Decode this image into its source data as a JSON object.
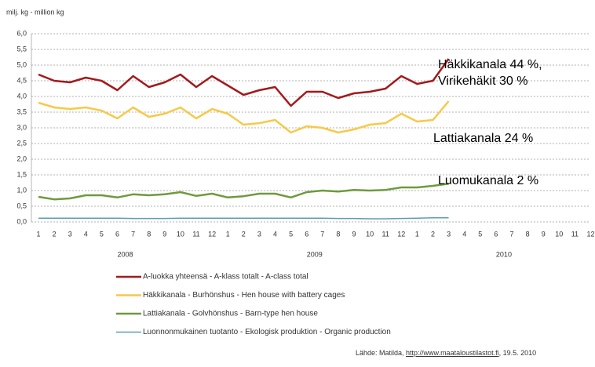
{
  "chart_data": {
    "type": "line",
    "y_unit_label": "milj. kg - million kg",
    "categories": [
      "1",
      "2",
      "3",
      "4",
      "5",
      "6",
      "7",
      "8",
      "9",
      "10",
      "11",
      "12",
      "1",
      "2",
      "3",
      "4",
      "5",
      "6",
      "7",
      "8",
      "9",
      "10",
      "11",
      "12",
      "1",
      "2",
      "3",
      "4",
      "5",
      "6",
      "7",
      "8",
      "9",
      "10",
      "11",
      "12"
    ],
    "x_groups": [
      "2008",
      "2009",
      "2010"
    ],
    "ylim": [
      0,
      6
    ],
    "yticks": [
      {
        "value": 0,
        "label": "0,0"
      },
      {
        "value": 0.5,
        "label": "0,5"
      },
      {
        "value": 1,
        "label": "1,0"
      },
      {
        "value": 1.5,
        "label": "1,5"
      },
      {
        "value": 2,
        "label": "2,0"
      },
      {
        "value": 2.5,
        "label": "2,5"
      },
      {
        "value": 3,
        "label": "3,0"
      },
      {
        "value": 3.5,
        "label": "3,5"
      },
      {
        "value": 4,
        "label": "4,0"
      },
      {
        "value": 4.5,
        "label": "4,5"
      },
      {
        "value": 5,
        "label": "5,0"
      },
      {
        "value": 5.5,
        "label": "5,5"
      },
      {
        "value": 6,
        "label": "6,0"
      }
    ],
    "grid": true,
    "series": [
      {
        "name": "A-luokka yhteensä - A-klass totalt - A-class total",
        "color": "#a3191c",
        "values": [
          4.7,
          4.5,
          4.45,
          4.6,
          4.5,
          4.2,
          4.65,
          4.3,
          4.45,
          4.7,
          4.3,
          4.65,
          4.35,
          4.05,
          4.2,
          4.3,
          3.7,
          4.15,
          4.15,
          3.95,
          4.1,
          4.15,
          4.25,
          4.65,
          4.4,
          4.5,
          5.2,
          null,
          null,
          null,
          null,
          null,
          null,
          null,
          null,
          null
        ]
      },
      {
        "name": "Häkkikanala - Burhönshus - Hen house with battery cages",
        "color": "#f7c948",
        "values": [
          3.8,
          3.65,
          3.6,
          3.65,
          3.55,
          3.3,
          3.65,
          3.35,
          3.45,
          3.65,
          3.3,
          3.6,
          3.45,
          3.1,
          3.15,
          3.25,
          2.85,
          3.05,
          3.0,
          2.85,
          2.95,
          3.1,
          3.15,
          3.45,
          3.2,
          3.25,
          3.85,
          null,
          null,
          null,
          null,
          null,
          null,
          null,
          null,
          null
        ]
      },
      {
        "name": "Lattiakanala - Golvhönshus - Barn-type hen house",
        "color": "#6f9a3d",
        "values": [
          0.8,
          0.72,
          0.75,
          0.85,
          0.85,
          0.78,
          0.88,
          0.85,
          0.88,
          0.95,
          0.83,
          0.9,
          0.78,
          0.82,
          0.9,
          0.9,
          0.78,
          0.95,
          1.0,
          0.97,
          1.02,
          1.0,
          1.02,
          1.1,
          1.1,
          1.15,
          1.22,
          null,
          null,
          null,
          null,
          null,
          null,
          null,
          null,
          null
        ]
      },
      {
        "name": "Luonnonmukainen tuotanto - Ekologisk produktion - Organic production",
        "color": "#5a9fb5",
        "values": [
          0.12,
          0.12,
          0.12,
          0.12,
          0.12,
          0.12,
          0.11,
          0.11,
          0.11,
          0.12,
          0.12,
          0.12,
          0.12,
          0.12,
          0.12,
          0.12,
          0.12,
          0.12,
          0.12,
          0.11,
          0.11,
          0.1,
          0.1,
          0.11,
          0.12,
          0.13,
          0.13,
          null,
          null,
          null,
          null,
          null,
          null,
          null,
          null,
          null
        ]
      }
    ],
    "annotations": [
      "Häkkikanala 44 %, Virikehäkit 30 %",
      "Lattiakanala 24 %",
      "Luomukanala 2 %"
    ],
    "source": {
      "prefix": "Lähde:  Matilda, ",
      "link": "http://www.maataloustilastot.fi",
      "suffix": ", 19.5. 2010"
    }
  }
}
